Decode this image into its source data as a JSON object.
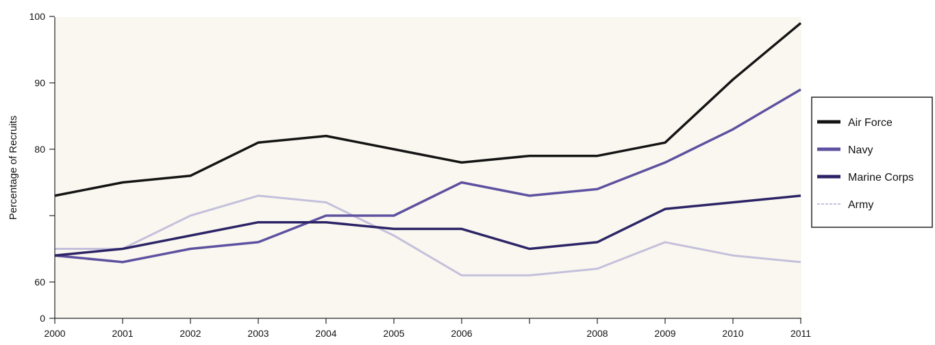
{
  "chart_data": {
    "type": "line",
    "title": "",
    "xlabel": "",
    "ylabel": "Percentage of Recruits",
    "x": [
      "2000",
      "2001",
      "2002",
      "2003",
      "2004",
      "2005",
      "2006",
      "2007",
      "2008",
      "2009",
      "2010",
      "2011"
    ],
    "x_tick_labels": [
      "2000",
      "2001",
      "2002",
      "2003",
      "2004",
      "2005",
      "2006",
      "",
      "2008",
      "2009",
      "2010",
      "2011"
    ],
    "y_tick_labels": [
      "0",
      "60",
      "",
      "80",
      "90",
      "100"
    ],
    "grid": false,
    "legend_position": "right",
    "series": [
      {
        "name": "Air Force",
        "color": "#141414",
        "values": [
          73,
          75,
          76,
          81,
          82,
          80,
          78,
          79,
          79,
          81,
          90.5,
          99
        ]
      },
      {
        "name": "Navy",
        "color": "#5d51a0",
        "values": [
          64,
          63,
          65,
          66,
          70,
          70,
          75,
          73,
          74,
          78,
          83,
          89
        ]
      },
      {
        "name": "Marine Corps",
        "color": "#2c2466",
        "values": [
          64,
          65,
          67,
          69,
          69,
          68,
          68,
          65,
          66,
          71,
          72,
          73
        ]
      },
      {
        "name": "Army",
        "color": "#c4c0dc",
        "values": [
          65,
          65,
          70,
          73,
          72,
          67,
          61,
          61,
          62,
          66,
          64,
          63
        ]
      }
    ]
  }
}
